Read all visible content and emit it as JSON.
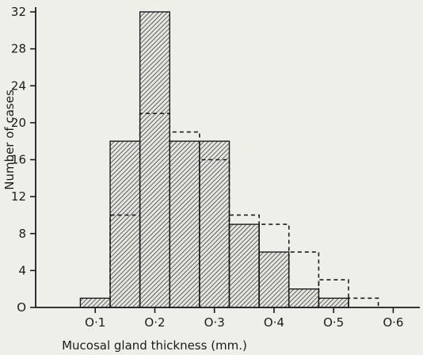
{
  "chart_data": {
    "type": "bar",
    "xlabel": "Mucosal gland thickness (mm.)",
    "ylabel": "Number of cases",
    "xlim": [
      0.0,
      0.65
    ],
    "ylim": [
      0,
      32
    ],
    "x_tick_labels": [
      "O·1",
      "O·2",
      "O·3",
      "O·4",
      "O·5",
      "O·6"
    ],
    "x_ticks": [
      0.1,
      0.2,
      0.3,
      0.4,
      0.5,
      0.6
    ],
    "y_ticks": [
      0,
      4,
      8,
      12,
      16,
      20,
      24,
      28,
      32
    ],
    "y_tick_labels": [
      "O",
      "4",
      "8",
      "12",
      "16",
      "20",
      "24",
      "28",
      "32"
    ],
    "series": [
      {
        "style": "hatched-bars",
        "bins": [
          {
            "x0": 0.075,
            "x1": 0.125,
            "value": 1
          },
          {
            "x0": 0.125,
            "x1": 0.175,
            "value": 18
          },
          {
            "x0": 0.175,
            "x1": 0.225,
            "value": 32
          },
          {
            "x0": 0.225,
            "x1": 0.275,
            "value": 18
          },
          {
            "x0": 0.275,
            "x1": 0.325,
            "value": 18
          },
          {
            "x0": 0.325,
            "x1": 0.375,
            "value": 9
          },
          {
            "x0": 0.375,
            "x1": 0.425,
            "value": 6
          },
          {
            "x0": 0.425,
            "x1": 0.475,
            "value": 2
          },
          {
            "x0": 0.475,
            "x1": 0.525,
            "value": 1
          }
        ]
      },
      {
        "style": "dashed-step-outline",
        "bins": [
          {
            "x0": 0.125,
            "x1": 0.175,
            "value": 10
          },
          {
            "x0": 0.175,
            "x1": 0.225,
            "value": 21
          },
          {
            "x0": 0.225,
            "x1": 0.275,
            "value": 19
          },
          {
            "x0": 0.275,
            "x1": 0.325,
            "value": 16
          },
          {
            "x0": 0.325,
            "x1": 0.375,
            "value": 10
          },
          {
            "x0": 0.375,
            "x1": 0.425,
            "value": 9
          },
          {
            "x0": 0.425,
            "x1": 0.475,
            "value": 6
          },
          {
            "x0": 0.475,
            "x1": 0.525,
            "value": 3
          },
          {
            "x0": 0.525,
            "x1": 0.575,
            "value": 1
          }
        ]
      }
    ],
    "grid": false,
    "colors": {
      "ink": "#1b1b1b",
      "background": "#efefea"
    }
  }
}
